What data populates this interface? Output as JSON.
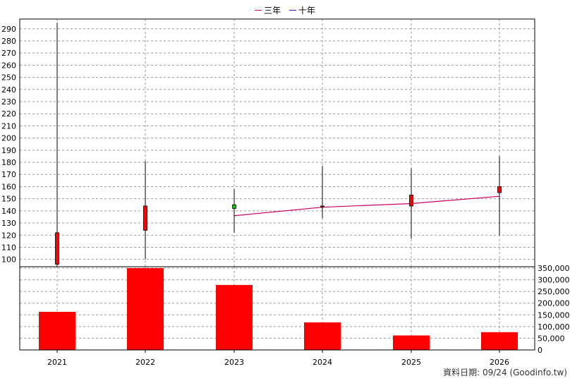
{
  "legend": {
    "items": [
      {
        "label": "三年",
        "color": "#CC0066"
      },
      {
        "label": "十年",
        "color": "#6600CC"
      }
    ]
  },
  "footer": {
    "text": "資料日期: 09/24  (Goodinfo.tw)"
  },
  "colors": {
    "candle_up": "#FF0000",
    "candle_down": "#00CC00",
    "volume_bar": "#FF0000",
    "ma_line": "#CC0066",
    "grid": "#999999"
  },
  "chart_data": [
    {
      "type": "candlestick",
      "title": "",
      "categories": [
        "2021",
        "2022",
        "2023",
        "2024",
        "2025",
        "2026"
      ],
      "ylim": [
        94,
        298
      ],
      "yticks": [
        100,
        110,
        120,
        130,
        140,
        150,
        160,
        170,
        180,
        190,
        200,
        210,
        220,
        230,
        240,
        250,
        260,
        270,
        280,
        290
      ],
      "grid": true,
      "candles": [
        {
          "x": "2021",
          "open": 96,
          "high": 295,
          "low": 94,
          "close": 122
        },
        {
          "x": "2022",
          "open": 124,
          "high": 181,
          "low": 100,
          "close": 144
        },
        {
          "x": "2023",
          "open": 145,
          "high": 158,
          "low": 122,
          "close": 142
        },
        {
          "x": "2024",
          "open": 143,
          "high": 177,
          "low": 134,
          "close": 144
        },
        {
          "x": "2025",
          "open": 144,
          "high": 175,
          "low": 117,
          "close": 153
        },
        {
          "x": "2026",
          "open": 155,
          "high": 185,
          "low": 120,
          "close": 160
        }
      ],
      "series": [
        {
          "name": "三年",
          "type": "line",
          "x": [
            "2023",
            "2024",
            "2025",
            "2026"
          ],
          "values": [
            136,
            143,
            146,
            152
          ]
        }
      ]
    },
    {
      "type": "bar",
      "title": "",
      "categories": [
        "2021",
        "2022",
        "2023",
        "2024",
        "2025",
        "2026"
      ],
      "values": [
        163000,
        350000,
        278000,
        118000,
        62000,
        76000
      ],
      "ylim": [
        0,
        350000
      ],
      "yticks": [
        "0",
        "50,000",
        "100,000",
        "150,000",
        "200,000",
        "250,000",
        "300,000",
        "350,000"
      ],
      "ytick_values": [
        0,
        50000,
        100000,
        150000,
        200000,
        250000,
        300000,
        350000
      ],
      "grid": true
    }
  ]
}
